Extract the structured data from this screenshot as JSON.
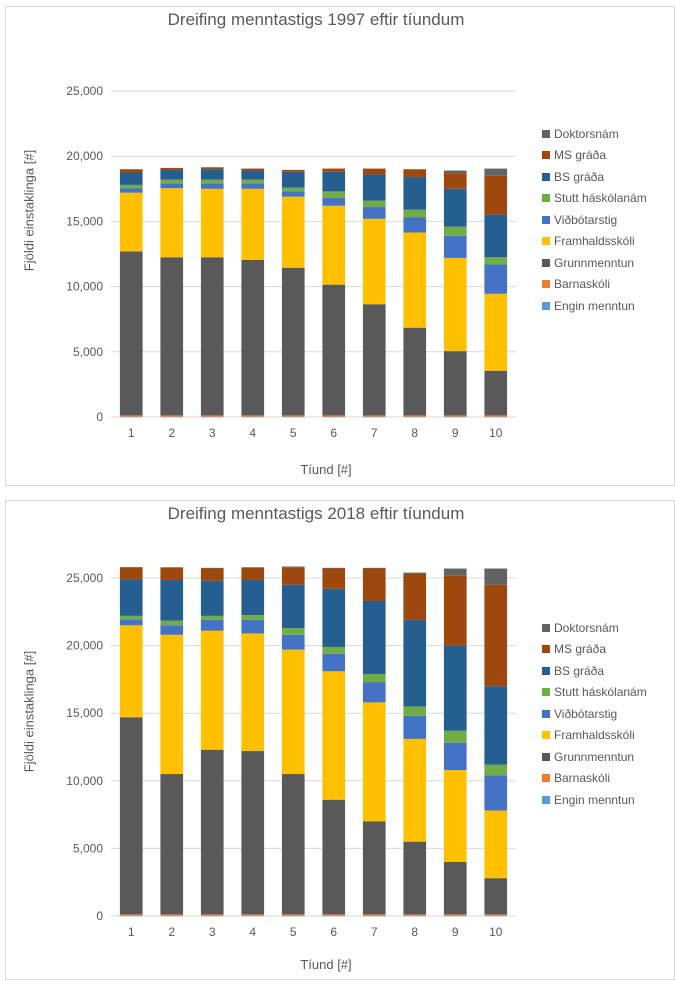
{
  "chart_data": [
    {
      "type": "bar",
      "stacked": true,
      "title": "Dreifing menntastigs 1997 eftir tíundum",
      "xlabel": "Tíund [#]",
      "ylabel": "Fjöldi einstaklinga [#]",
      "ylim": [
        0,
        25000
      ],
      "yticks": [
        "0",
        "5,000",
        "10,000",
        "15,000",
        "20,000",
        "25,000"
      ],
      "categories": [
        "1",
        "2",
        "3",
        "4",
        "5",
        "6",
        "7",
        "8",
        "9",
        "10"
      ],
      "grid": true,
      "legend_position": "right",
      "series": [
        {
          "name": "Engin menntun",
          "color": "#5b9bd5",
          "values": [
            20,
            20,
            20,
            20,
            20,
            20,
            20,
            20,
            20,
            20
          ]
        },
        {
          "name": "Barnaskóli",
          "color": "#ed7d31",
          "values": [
            100,
            100,
            100,
            100,
            100,
            100,
            100,
            100,
            100,
            100
          ]
        },
        {
          "name": "Grunnmenntun",
          "color": "#595959",
          "values": [
            12580,
            12130,
            12130,
            11930,
            11330,
            10030,
            8530,
            6730,
            4930,
            3430
          ]
        },
        {
          "name": "Framhaldsskóli",
          "color": "#ffc000",
          "values": [
            4500,
            5300,
            5250,
            5450,
            5450,
            6050,
            6550,
            7300,
            7150,
            5900
          ]
        },
        {
          "name": "Viðbótarstig",
          "color": "#4472c4",
          "values": [
            350,
            350,
            400,
            400,
            400,
            600,
            900,
            1150,
            1700,
            2250
          ]
        },
        {
          "name": "Stutt háskólanám",
          "color": "#70ad47",
          "values": [
            250,
            300,
            300,
            300,
            300,
            500,
            500,
            600,
            700,
            550
          ]
        },
        {
          "name": "BS gráða",
          "color": "#255e91",
          "values": [
            950,
            750,
            800,
            700,
            1200,
            1500,
            2000,
            2500,
            2900,
            3250
          ]
        },
        {
          "name": "MS gráða",
          "color": "#9e480e",
          "values": [
            250,
            150,
            150,
            150,
            150,
            250,
            450,
            600,
            1200,
            3000
          ]
        },
        {
          "name": "Doktorsnám",
          "color": "#636363",
          "values": [
            0,
            0,
            0,
            0,
            0,
            0,
            0,
            0,
            200,
            550
          ]
        }
      ]
    },
    {
      "type": "bar",
      "stacked": true,
      "title": "Dreifing menntastigs 2018 eftir tíundum",
      "xlabel": "Tíund [#]",
      "ylabel": "Fjöldi einstaklinga [#]",
      "ylim": [
        0,
        25000
      ],
      "yticks": [
        "0",
        "5,000",
        "10,000",
        "15,000",
        "20,000",
        "25,000"
      ],
      "categories": [
        "1",
        "2",
        "3",
        "4",
        "5",
        "6",
        "7",
        "8",
        "9",
        "10"
      ],
      "grid": true,
      "legend_position": "right",
      "series": [
        {
          "name": "Engin menntun",
          "color": "#5b9bd5",
          "values": [
            20,
            20,
            20,
            20,
            20,
            20,
            20,
            20,
            20,
            20
          ]
        },
        {
          "name": "Barnaskóli",
          "color": "#ed7d31",
          "values": [
            100,
            100,
            100,
            100,
            100,
            100,
            100,
            100,
            100,
            100
          ]
        },
        {
          "name": "Grunnmenntun",
          "color": "#595959",
          "values": [
            14580,
            10380,
            12180,
            12080,
            10380,
            8480,
            6880,
            5380,
            3880,
            2680
          ]
        },
        {
          "name": "Framhaldsskóli",
          "color": "#ffc000",
          "values": [
            6800,
            10300,
            8800,
            8700,
            9200,
            9500,
            8800,
            7600,
            6800,
            5000
          ]
        },
        {
          "name": "Viðbótarstig",
          "color": "#4472c4",
          "values": [
            450,
            700,
            800,
            1000,
            1100,
            1300,
            1500,
            1700,
            2000,
            2600
          ]
        },
        {
          "name": "Stutt háskólanám",
          "color": "#70ad47",
          "values": [
            250,
            350,
            300,
            350,
            500,
            500,
            600,
            700,
            900,
            800
          ]
        },
        {
          "name": "BS gráða",
          "color": "#255e91",
          "values": [
            2700,
            3000,
            2600,
            2600,
            3200,
            4300,
            5400,
            6400,
            6300,
            5800
          ]
        },
        {
          "name": "MS gráða",
          "color": "#9e480e",
          "values": [
            900,
            900,
            900,
            900,
            1300,
            1500,
            2400,
            3400,
            5200,
            7500
          ]
        },
        {
          "name": "Doktorsnám",
          "color": "#636363",
          "values": [
            0,
            50,
            50,
            50,
            50,
            50,
            50,
            100,
            500,
            1200
          ]
        }
      ]
    }
  ]
}
